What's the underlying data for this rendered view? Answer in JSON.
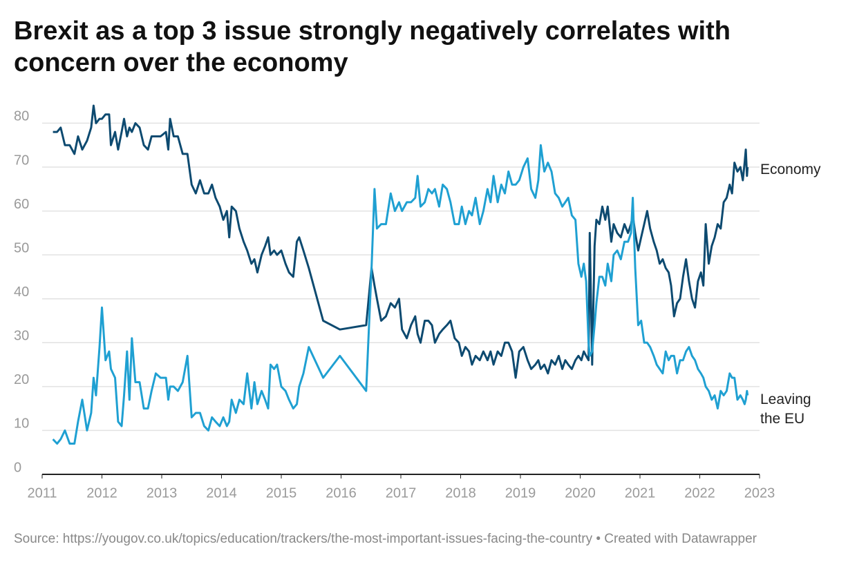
{
  "chart_data": {
    "type": "line",
    "title": "Brexit as a top 3 issue strongly negatively correlates with concern over the economy",
    "source": "Source: https://yougov.co.uk/topics/education/trackers/the-most-important-issues-facing-the-country • Created with Datawrapper",
    "x": [
      2011.18,
      2011.25,
      2011.31,
      2011.38,
      2011.46,
      2011.54,
      2011.6,
      2011.67,
      2011.75,
      2011.82,
      2011.86,
      2011.9,
      2011.96,
      2012.0,
      2012.06,
      2012.12,
      2012.15,
      2012.22,
      2012.27,
      2012.33,
      2012.37,
      2012.42,
      2012.46,
      2012.5,
      2012.56,
      2012.63,
      2012.7,
      2012.77,
      2012.83,
      2012.9,
      2012.98,
      2013.07,
      2013.11,
      2013.14,
      2013.2,
      2013.27,
      2013.35,
      2013.43,
      2013.5,
      2013.57,
      2013.64,
      2013.71,
      2013.78,
      2013.84,
      2013.9,
      2013.97,
      2014.03,
      2014.09,
      2014.13,
      2014.17,
      2014.24,
      2014.3,
      2014.37,
      2014.43,
      2014.5,
      2014.55,
      2014.6,
      2014.67,
      2014.73,
      2014.78,
      2014.82,
      2014.88,
      2014.93,
      2015.0,
      2015.07,
      2015.13,
      2015.2,
      2015.26,
      2015.3,
      2015.37,
      2015.46,
      2015.7,
      2015.98,
      2016.42,
      2016.51,
      2016.56,
      2016.6,
      2016.67,
      2016.75,
      2016.83,
      2016.9,
      2016.97,
      2017.02,
      2017.1,
      2017.17,
      2017.24,
      2017.28,
      2017.33,
      2017.4,
      2017.46,
      2017.52,
      2017.57,
      2017.64,
      2017.7,
      2017.77,
      2017.83,
      2017.9,
      2017.97,
      2018.02,
      2018.08,
      2018.14,
      2018.19,
      2018.25,
      2018.32,
      2018.38,
      2018.45,
      2018.5,
      2018.55,
      2018.62,
      2018.68,
      2018.74,
      2018.8,
      2018.86,
      2018.92,
      2018.98,
      2019.05,
      2019.12,
      2019.18,
      2019.25,
      2019.3,
      2019.34,
      2019.4,
      2019.46,
      2019.52,
      2019.58,
      2019.64,
      2019.7,
      2019.75,
      2019.8,
      2019.86,
      2019.92,
      2019.97,
      2020.02,
      2020.06,
      2020.1,
      2020.14,
      2020.16,
      2020.2,
      2020.24,
      2020.27,
      2020.32,
      2020.37,
      2020.42,
      2020.46,
      2020.52,
      2020.56,
      2020.62,
      2020.68,
      2020.74,
      2020.8,
      2020.85,
      2020.88,
      2020.92,
      2020.97,
      2021.02,
      2021.07,
      2021.12,
      2021.17,
      2021.23,
      2021.28,
      2021.33,
      2021.38,
      2021.43,
      2021.48,
      2021.52,
      2021.57,
      2021.62,
      2021.67,
      2021.72,
      2021.77,
      2021.82,
      2021.87,
      2021.92,
      2021.97,
      2022.02,
      2022.06,
      2022.1,
      2022.15,
      2022.2,
      2022.25,
      2022.3,
      2022.35,
      2022.4,
      2022.45,
      2022.5,
      2022.54,
      2022.58,
      2022.63,
      2022.68,
      2022.72,
      2022.75,
      2022.77,
      2022.79,
      2022.8
    ],
    "series": [
      {
        "name": "Economy",
        "color": "#0d4a70",
        "values": [
          78,
          78,
          79,
          75,
          75,
          73,
          77,
          74,
          76,
          79,
          84,
          80,
          81,
          81,
          82,
          82,
          75,
          78,
          74,
          78,
          81,
          77,
          79,
          78,
          80,
          79,
          75,
          74,
          77,
          77,
          77,
          78,
          74,
          81,
          77,
          77,
          73,
          73,
          66,
          64,
          67,
          64,
          64,
          66,
          63,
          61,
          58,
          60,
          54,
          61,
          60,
          56,
          53,
          51,
          48,
          49,
          46,
          50,
          52,
          54,
          50,
          51,
          50,
          51,
          48,
          46,
          45,
          53,
          54,
          51,
          47,
          35,
          33,
          34,
          47,
          43,
          40,
          35,
          36,
          39,
          38,
          40,
          33,
          31,
          34,
          36,
          32,
          30,
          35,
          35,
          34,
          30,
          32,
          33,
          34,
          35,
          31,
          30,
          27,
          29,
          28,
          25,
          27,
          26,
          28,
          26,
          28,
          25,
          28,
          27,
          30,
          30,
          28,
          22,
          28,
          29,
          26,
          24,
          25,
          26,
          24,
          25,
          23,
          26,
          25,
          27,
          24,
          26,
          25,
          24,
          26,
          27,
          26,
          28,
          27,
          26,
          55,
          25,
          52,
          58,
          57,
          61,
          58,
          61,
          53,
          57,
          55,
          54,
          57,
          55,
          57,
          59,
          55,
          51,
          54,
          57,
          60,
          56,
          53,
          51,
          48,
          49,
          47,
          46,
          43,
          36,
          39,
          40,
          45,
          49,
          44,
          40,
          38,
          44,
          46,
          43,
          57,
          48,
          52,
          54,
          57,
          56,
          62,
          63,
          66,
          64,
          71,
          69,
          70,
          67,
          71,
          74,
          68,
          70
        ]
      },
      {
        "name": "Leaving the EU",
        "color": "#1fa0d2",
        "values": [
          8,
          7,
          8,
          10,
          7,
          7,
          12,
          17,
          10,
          14,
          22,
          18,
          29,
          38,
          26,
          28,
          24,
          22,
          12,
          11,
          18,
          28,
          17,
          31,
          21,
          21,
          15,
          15,
          19,
          23,
          22,
          22,
          17,
          20,
          20,
          19,
          21,
          27,
          13,
          14,
          14,
          11,
          10,
          13,
          12,
          11,
          13,
          11,
          12,
          17,
          14,
          17,
          16,
          23,
          15,
          21,
          16,
          19,
          17,
          15,
          25,
          24,
          25,
          20,
          19,
          17,
          15,
          16,
          20,
          23,
          29,
          22,
          27,
          19,
          47,
          65,
          56,
          57,
          57,
          64,
          60,
          62,
          60,
          62,
          62,
          63,
          68,
          61,
          62,
          65,
          64,
          65,
          61,
          66,
          65,
          62,
          57,
          57,
          61,
          57,
          60,
          59,
          63,
          57,
          60,
          65,
          62,
          68,
          62,
          66,
          64,
          69,
          66,
          66,
          67,
          70,
          72,
          65,
          63,
          67,
          75,
          69,
          71,
          69,
          64,
          63,
          61,
          62,
          63,
          59,
          58,
          48,
          45,
          48,
          44,
          30,
          27,
          28,
          34,
          39,
          45,
          45,
          43,
          48,
          44,
          50,
          51,
          49,
          53,
          53,
          55,
          63,
          47,
          34,
          35,
          30,
          30,
          29,
          27,
          25,
          24,
          23,
          28,
          26,
          27,
          27,
          23,
          26,
          26,
          28,
          29,
          27,
          26,
          24,
          23,
          22,
          20,
          19,
          17,
          18,
          15,
          19,
          18,
          19,
          23,
          22,
          22,
          17,
          18,
          17,
          16,
          17,
          19,
          18
        ]
      }
    ],
    "xlim": [
      2011,
      2023
    ],
    "xticks": [
      2011,
      2012,
      2013,
      2014,
      2015,
      2016,
      2017,
      2018,
      2019,
      2020,
      2021,
      2022,
      2023
    ],
    "ylim": [
      0,
      84
    ],
    "yticks": [
      0,
      10,
      20,
      30,
      40,
      50,
      60,
      70,
      80
    ],
    "grid": true
  }
}
